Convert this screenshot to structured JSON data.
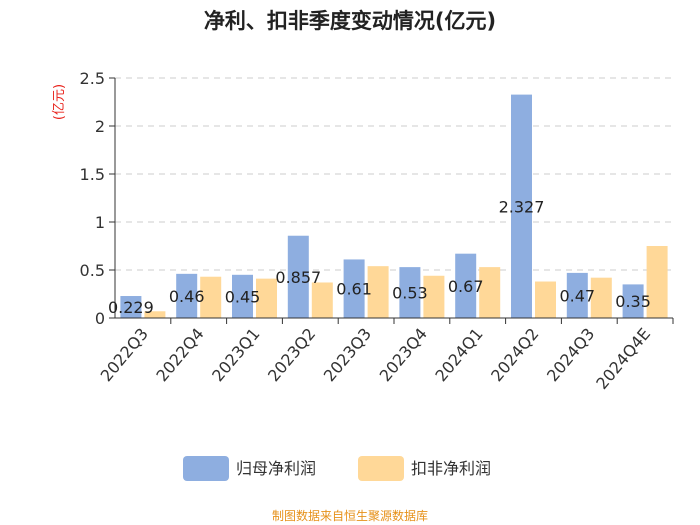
{
  "chart_data": {
    "type": "bar",
    "title": "净利、扣非季度变动情况(亿元)",
    "ylabel": "(亿元)",
    "ylim": [
      0,
      2.5
    ],
    "yticks": [
      "0",
      "0.5",
      "1",
      "1.5",
      "2",
      "2.5"
    ],
    "categories": [
      "2022Q3",
      "2022Q4",
      "2023Q1",
      "2023Q2",
      "2023Q3",
      "2023Q4",
      "2024Q1",
      "2024Q2",
      "2024Q3",
      "2024Q4E"
    ],
    "series": [
      {
        "name": "归母净利润",
        "color": "#8eaee0",
        "values": [
          0.229,
          0.46,
          0.45,
          0.857,
          0.61,
          0.53,
          0.67,
          2.327,
          0.47,
          0.35
        ]
      },
      {
        "name": "扣非净利润",
        "color": "#ffd898",
        "values": [
          0.07,
          0.43,
          0.41,
          0.37,
          0.54,
          0.44,
          0.53,
          0.38,
          0.42,
          0.75
        ]
      }
    ],
    "data_labels": [
      "0.229",
      "0.46",
      "0.45",
      "0.857",
      "0.61",
      "0.53",
      "0.67",
      "2.327",
      "0.47",
      "0.35"
    ],
    "grid": true,
    "legend_position": "bottom"
  },
  "source_text": "制图数据来自恒生聚源数据库",
  "colors": {
    "ylabel": "#e8221b",
    "source": "#e6911a"
  }
}
